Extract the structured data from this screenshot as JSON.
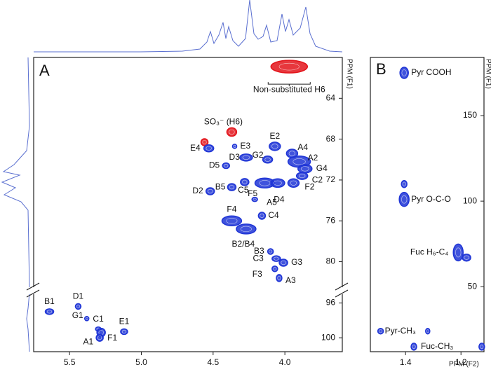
{
  "chart_data": [
    {
      "type": "scatter",
      "panel_label": "A",
      "xlabel": "PPM (F2)",
      "ylabel": "PPM (F1)",
      "xlim": [
        5.75,
        3.6
      ],
      "xticks": [
        5.5,
        {
          "value": 5,
          "label": "5.0"
        },
        4.5,
        {
          "value": 4,
          "label": "4.0"
        }
      ],
      "y_inverted": true,
      "y_segments": [
        {
          "ylim": [
            60,
            82.5
          ],
          "yticks": [
            64,
            68,
            72,
            76,
            80
          ]
        },
        {
          "ylim": [
            95,
            101.6
          ],
          "yticks": [
            96,
            100
          ]
        }
      ],
      "peaks": [
        {
          "label": "Non-substituted H6",
          "x": 3.97,
          "y": 60.9,
          "color": "#e3141b"
        },
        {
          "label": "SO₃⁻ (H6)",
          "x": 4.37,
          "y": 67.3,
          "color": "#e3141b"
        },
        {
          "label": null,
          "x": 4.56,
          "y": 68.3,
          "color": "#e3141b"
        },
        {
          "label": "E4",
          "x": 4.53,
          "y": 68.9,
          "color": "#1f35d6"
        },
        {
          "label": "E3",
          "x": 4.35,
          "y": 68.7,
          "color": "#1f35d6"
        },
        {
          "label": "D3",
          "x": 4.27,
          "y": 69.8,
          "color": "#1f35d6"
        },
        {
          "label": "G2",
          "x": 4.12,
          "y": 70.0,
          "color": "#1f35d6"
        },
        {
          "label": "E2",
          "x": 4.07,
          "y": 68.7,
          "color": "#1f35d6"
        },
        {
          "label": "A4",
          "x": 3.95,
          "y": 69.4,
          "color": "#1f35d6"
        },
        {
          "label": "A2",
          "x": 3.9,
          "y": 70.2,
          "color": "#1f35d6"
        },
        {
          "label": "G4",
          "x": 3.86,
          "y": 70.9,
          "color": "#1f35d6"
        },
        {
          "label": "C2",
          "x": 3.88,
          "y": 71.6,
          "color": "#1f35d6"
        },
        {
          "label": "D5",
          "x": 4.41,
          "y": 70.6,
          "color": "#1f35d6"
        },
        {
          "label": "B5",
          "x": 4.37,
          "y": 72.7,
          "color": "#1f35d6"
        },
        {
          "label": "D2",
          "x": 4.52,
          "y": 73.1,
          "color": "#1f35d6"
        },
        {
          "label": "C5",
          "x": 4.28,
          "y": 72.2,
          "color": "#1f35d6"
        },
        {
          "label": "F5",
          "x": 4.21,
          "y": 73.9,
          "color": "#1f35d6"
        },
        {
          "label": "A5",
          "x": 4.14,
          "y": 72.3,
          "color": "#1f35d6"
        },
        {
          "label": "D4",
          "x": 4.05,
          "y": 72.3,
          "color": "#1f35d6"
        },
        {
          "label": "F2",
          "x": 3.94,
          "y": 72.3,
          "color": "#1f35d6"
        },
        {
          "label": "F4",
          "x": 4.37,
          "y": 76.0,
          "color": "#1f35d6"
        },
        {
          "label": "B2/B4",
          "x": 4.27,
          "y": 76.8,
          "color": "#1f35d6"
        },
        {
          "label": "C4",
          "x": 4.16,
          "y": 75.5,
          "color": "#1f35d6"
        },
        {
          "label": "B3",
          "x": 4.1,
          "y": 79.0,
          "color": "#1f35d6"
        },
        {
          "label": "C3",
          "x": 4.06,
          "y": 79.7,
          "color": "#1f35d6"
        },
        {
          "label": "G3",
          "x": 4.01,
          "y": 80.1,
          "color": "#1f35d6"
        },
        {
          "label": "F3",
          "x": 4.07,
          "y": 80.7,
          "color": "#1f35d6"
        },
        {
          "label": "A3",
          "x": 4.04,
          "y": 81.6,
          "color": "#1f35d6"
        },
        {
          "label": "B1",
          "x": 5.64,
          "y": 97.0,
          "color": "#1f35d6"
        },
        {
          "label": "D1",
          "x": 5.44,
          "y": 96.4,
          "color": "#1f35d6"
        },
        {
          "label": "G1",
          "x": 5.38,
          "y": 97.8,
          "color": "#1f35d6"
        },
        {
          "label": "C1",
          "x": 5.3,
          "y": 99.0,
          "color": "#1f35d6"
        },
        {
          "label": "F1",
          "x": 5.28,
          "y": 99.4,
          "color": "#1f35d6"
        },
        {
          "label": "A1",
          "x": 5.29,
          "y": 100.0,
          "color": "#1f35d6"
        },
        {
          "label": "E1",
          "x": 5.12,
          "y": 99.3,
          "color": "#1f35d6"
        }
      ]
    },
    {
      "type": "scatter",
      "panel_label": "B",
      "xlabel": "PPM (F2)",
      "ylabel": "PPM (F1)",
      "xlim": [
        1.527,
        1.117
      ],
      "xticks": [
        1.4,
        1.2
      ],
      "y_inverted": false,
      "y_segments": [
        {
          "ylim": [
            12,
            184
          ],
          "yticks": [
            50,
            100,
            150
          ]
        }
      ],
      "peaks": [
        {
          "label": "Pyr COOH",
          "x": 1.405,
          "y": 175,
          "color": "#1f35d6"
        },
        {
          "label": null,
          "x": 1.405,
          "y": 110,
          "color": "#1f35d6"
        },
        {
          "label": "Pyr O-C-O",
          "x": 1.405,
          "y": 101,
          "color": "#1f35d6"
        },
        {
          "label": "Fuc H₆-C₄",
          "x": 1.21,
          "y": 70,
          "color": "#1f35d6"
        },
        {
          "label": null,
          "x": 1.18,
          "y": 67,
          "color": "#1f35d6"
        },
        {
          "label": "Pyr-CH₃",
          "x": 1.49,
          "y": 24,
          "color": "#1f35d6"
        },
        {
          "label": null,
          "x": 1.32,
          "y": 24,
          "color": "#1f35d6"
        },
        {
          "label": "Fuc-CH₃",
          "x": 1.37,
          "y": 14.9,
          "color": "#1f35d6"
        },
        {
          "label": null,
          "x": 1.125,
          "y": 14.9,
          "color": "#1f35d6"
        }
      ]
    }
  ]
}
